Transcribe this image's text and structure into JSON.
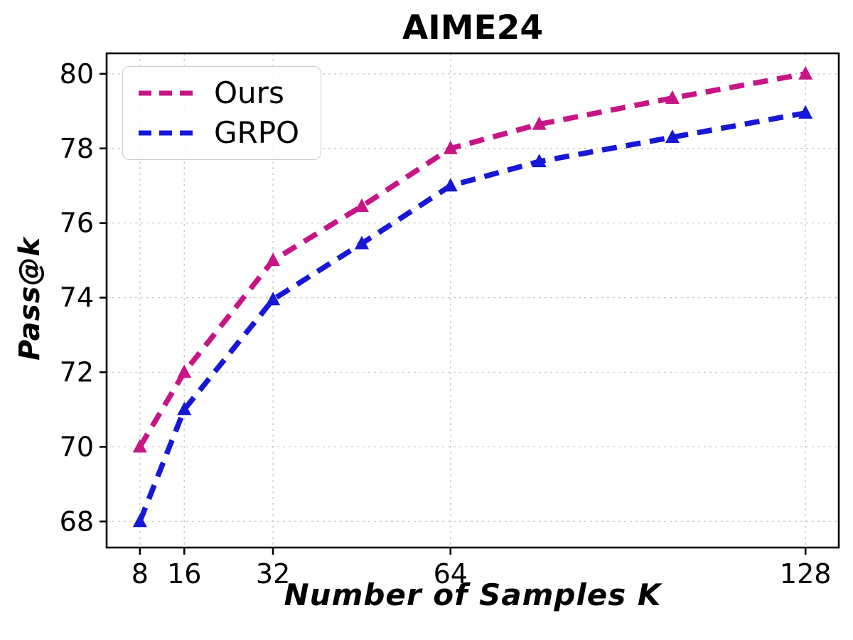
{
  "chart_data": {
    "type": "line",
    "title": "AIME24",
    "xlabel": "Number of Samples K",
    "ylabel": "Pass@k",
    "x_ticks": [
      8,
      16,
      32,
      64,
      128
    ],
    "y_ticks": [
      68,
      70,
      72,
      74,
      76,
      78,
      80
    ],
    "xlim": [
      2,
      134
    ],
    "ylim": [
      67.3,
      80.55
    ],
    "grid": true,
    "grid_color": "#c8c8c8",
    "legend_position": "upper-left",
    "x": [
      8,
      16,
      32,
      48,
      64,
      80,
      104,
      128
    ],
    "series": [
      {
        "name": "Ours",
        "color": "#C71585",
        "marker": "triangle-up",
        "linestyle": "dashed",
        "values": [
          70.0,
          72.0,
          75.0,
          76.45,
          78.0,
          78.65,
          79.35,
          80.0
        ]
      },
      {
        "name": "GRPO",
        "color": "#1717D6",
        "marker": "triangle-up",
        "linestyle": "dashed",
        "values": [
          68.0,
          71.0,
          73.95,
          75.45,
          77.0,
          77.65,
          78.3,
          78.95
        ]
      }
    ]
  }
}
